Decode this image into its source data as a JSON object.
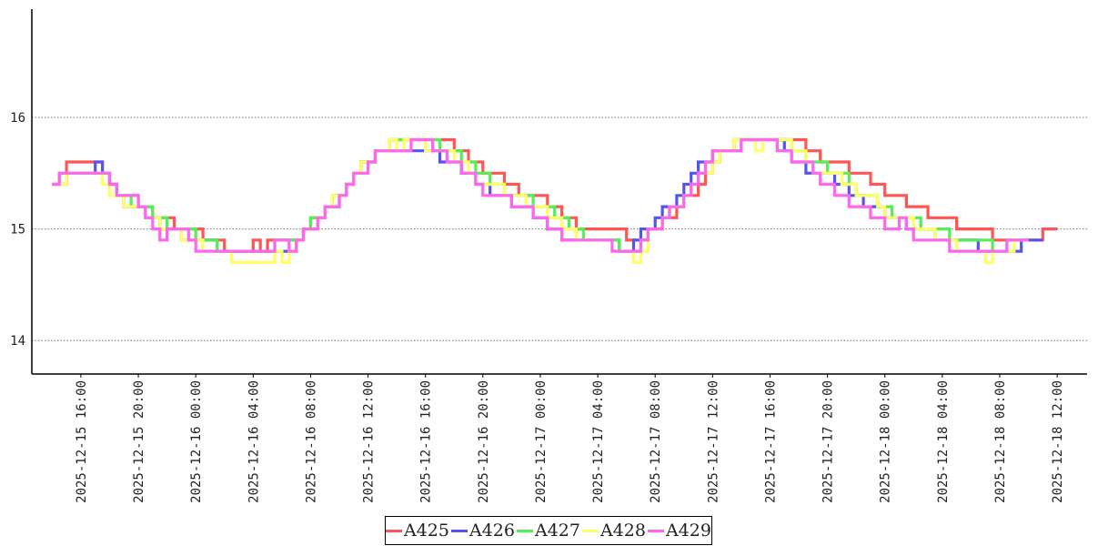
{
  "chart_data": {
    "type": "line",
    "title": "",
    "xlabel": "",
    "ylabel": "",
    "ylim": [
      13.7,
      16.97
    ],
    "xlim": [
      "2025-12-15 12:35",
      "2025-12-18 14:05"
    ],
    "y_ticks": [
      "14",
      "15",
      "16"
    ],
    "x_ticks": [
      "2025-12-15 16:00",
      "2025-12-15 20:00",
      "2025-12-16 00:00",
      "2025-12-16 04:00",
      "2025-12-16 08:00",
      "2025-12-16 12:00",
      "2025-12-16 16:00",
      "2025-12-16 20:00",
      "2025-12-17 00:00",
      "2025-12-17 04:00",
      "2025-12-17 08:00",
      "2025-12-17 12:00",
      "2025-12-17 16:00",
      "2025-12-17 20:00",
      "2025-12-18 00:00",
      "2025-12-18 04:00",
      "2025-12-18 08:00",
      "2025-12-18 12:00"
    ],
    "grid": "horizontal-dotted",
    "legend_position": "bottom-center",
    "start": "2025-12-15 14:00",
    "step_minutes": 30,
    "series": [
      {
        "name": "A425",
        "color": "#ff5555",
        "values": [
          15.4,
          15.5,
          15.6,
          15.6,
          15.6,
          15.6,
          15.6,
          15.5,
          15.4,
          15.3,
          15.3,
          15.3,
          15.2,
          15.2,
          15.1,
          15.1,
          15.1,
          15.0,
          15.0,
          15.0,
          15.0,
          14.9,
          14.9,
          14.9,
          14.8,
          14.8,
          14.8,
          14.8,
          14.9,
          14.8,
          14.9,
          14.9,
          14.9,
          14.9,
          14.9,
          15.0,
          15.1,
          15.1,
          15.2,
          15.3,
          15.3,
          15.4,
          15.5,
          15.6,
          15.6,
          15.7,
          15.7,
          15.8,
          15.8,
          15.8,
          15.8,
          15.8,
          15.8,
          15.8,
          15.8,
          15.8,
          15.7,
          15.7,
          15.6,
          15.6,
          15.5,
          15.5,
          15.5,
          15.4,
          15.4,
          15.3,
          15.3,
          15.3,
          15.3,
          15.2,
          15.2,
          15.1,
          15.1,
          15.0,
          15.0,
          15.0,
          15.0,
          15.0,
          15.0,
          15.0,
          14.9,
          14.9,
          14.9,
          15.0,
          15.0,
          15.1,
          15.1,
          15.2,
          15.3,
          15.3,
          15.4,
          15.5,
          15.6,
          15.7,
          15.7,
          15.8,
          15.8,
          15.8,
          15.8,
          15.8,
          15.8,
          15.8,
          15.8,
          15.8,
          15.8,
          15.7,
          15.7,
          15.6,
          15.6,
          15.6,
          15.6,
          15.5,
          15.5,
          15.5,
          15.4,
          15.4,
          15.3,
          15.3,
          15.3,
          15.2,
          15.2,
          15.2,
          15.1,
          15.1,
          15.1,
          15.1,
          15.0,
          15.0,
          15.0,
          15.0,
          15.0,
          14.9,
          14.9,
          14.9,
          14.9,
          14.9,
          14.9,
          14.9,
          15.0,
          15.0
        ]
      },
      {
        "name": "A426",
        "color": "#5555ee",
        "values": [
          15.4,
          15.4,
          15.5,
          15.5,
          15.5,
          15.5,
          15.6,
          15.5,
          15.4,
          15.3,
          15.2,
          15.2,
          15.2,
          15.1,
          15.1,
          15.0,
          15.0,
          15.0,
          14.9,
          14.9,
          14.9,
          14.9,
          14.9,
          14.8,
          14.8,
          14.8,
          14.8,
          14.8,
          14.8,
          14.8,
          14.8,
          14.8,
          14.8,
          14.8,
          14.9,
          15.0,
          15.0,
          15.1,
          15.2,
          15.2,
          15.3,
          15.4,
          15.5,
          15.6,
          15.6,
          15.7,
          15.7,
          15.7,
          15.7,
          15.7,
          15.7,
          15.7,
          15.7,
          15.7,
          15.6,
          15.6,
          15.6,
          15.5,
          15.5,
          15.4,
          15.4,
          15.3,
          15.3,
          15.3,
          15.2,
          15.2,
          15.2,
          15.1,
          15.1,
          15.0,
          15.0,
          14.9,
          14.9,
          14.9,
          14.9,
          14.9,
          14.9,
          14.9,
          14.9,
          14.8,
          14.8,
          14.9,
          15.0,
          15.0,
          15.1,
          15.2,
          15.2,
          15.3,
          15.4,
          15.5,
          15.6,
          15.6,
          15.7,
          15.7,
          15.7,
          15.7,
          15.8,
          15.8,
          15.8,
          15.8,
          15.8,
          15.8,
          15.7,
          15.6,
          15.6,
          15.5,
          15.5,
          15.5,
          15.5,
          15.4,
          15.4,
          15.3,
          15.3,
          15.2,
          15.2,
          15.2,
          15.1,
          15.1,
          15.1,
          15.0,
          15.0,
          15.0,
          15.0,
          14.9,
          14.9,
          14.9,
          14.9,
          14.9,
          14.9,
          14.8,
          14.8,
          14.8,
          14.8,
          14.8,
          14.8,
          14.9,
          14.9,
          14.9
        ]
      },
      {
        "name": "A427",
        "color": "#55ee55",
        "values": [
          15.4,
          15.5,
          15.5,
          15.5,
          15.5,
          15.5,
          15.5,
          15.5,
          15.4,
          15.3,
          15.3,
          15.2,
          15.2,
          15.2,
          15.1,
          15.1,
          15.0,
          15.0,
          15.0,
          15.0,
          14.9,
          14.9,
          14.9,
          14.8,
          14.8,
          14.8,
          14.8,
          14.8,
          14.8,
          14.8,
          14.8,
          14.9,
          14.9,
          14.9,
          14.9,
          15.0,
          15.1,
          15.1,
          15.2,
          15.3,
          15.3,
          15.4,
          15.5,
          15.6,
          15.6,
          15.7,
          15.7,
          15.8,
          15.8,
          15.8,
          15.8,
          15.8,
          15.8,
          15.8,
          15.7,
          15.7,
          15.7,
          15.6,
          15.6,
          15.5,
          15.5,
          15.4,
          15.4,
          15.3,
          15.3,
          15.3,
          15.3,
          15.2,
          15.2,
          15.2,
          15.1,
          15.1,
          15.0,
          15.0,
          14.9,
          14.9,
          14.9,
          14.9,
          14.9,
          14.8,
          14.8,
          14.8,
          14.9,
          15.0,
          15.0,
          15.1,
          15.2,
          15.2,
          15.3,
          15.4,
          15.5,
          15.6,
          15.6,
          15.7,
          15.7,
          15.8,
          15.8,
          15.8,
          15.8,
          15.8,
          15.8,
          15.8,
          15.8,
          15.7,
          15.7,
          15.6,
          15.6,
          15.6,
          15.5,
          15.5,
          15.5,
          15.4,
          15.3,
          15.3,
          15.3,
          15.2,
          15.2,
          15.1,
          15.1,
          15.1,
          15.1,
          15.0,
          15.0,
          15.0,
          15.0,
          14.9,
          14.9,
          14.9,
          14.9,
          14.9,
          14.9,
          14.8,
          14.8,
          14.9,
          14.9,
          14.9
        ]
      },
      {
        "name": "A428",
        "color": "#ffff66",
        "values": [
          15.4,
          15.4,
          15.5,
          15.5,
          15.5,
          15.5,
          15.5,
          15.4,
          15.3,
          15.3,
          15.2,
          15.2,
          15.2,
          15.1,
          15.1,
          15.0,
          15.0,
          15.0,
          14.9,
          14.9,
          14.9,
          14.8,
          14.8,
          14.8,
          14.8,
          14.7,
          14.7,
          14.7,
          14.7,
          14.7,
          14.7,
          14.8,
          14.7,
          14.8,
          14.9,
          15.0,
          15.0,
          15.1,
          15.2,
          15.3,
          15.3,
          15.4,
          15.5,
          15.6,
          15.6,
          15.7,
          15.7,
          15.8,
          15.7,
          15.8,
          15.8,
          15.8,
          15.7,
          15.7,
          15.7,
          15.7,
          15.6,
          15.6,
          15.5,
          15.4,
          15.4,
          15.4,
          15.4,
          15.3,
          15.3,
          15.3,
          15.2,
          15.2,
          15.2,
          15.1,
          15.1,
          15.0,
          15.0,
          14.9,
          14.9,
          14.9,
          14.9,
          14.9,
          14.8,
          14.8,
          14.8,
          14.7,
          14.8,
          15.0,
          15.0,
          15.1,
          15.2,
          15.2,
          15.3,
          15.4,
          15.5,
          15.5,
          15.6,
          15.7,
          15.7,
          15.8,
          15.8,
          15.8,
          15.7,
          15.8,
          15.8,
          15.8,
          15.8,
          15.7,
          15.7,
          15.6,
          15.5,
          15.5,
          15.5,
          15.5,
          15.4,
          15.4,
          15.3,
          15.3,
          15.3,
          15.2,
          15.1,
          15.1,
          15.1,
          15.1,
          15.0,
          15.0,
          15.0,
          14.9,
          14.9,
          14.9,
          14.8,
          14.8,
          14.8,
          14.8,
          14.7,
          14.8,
          14.8,
          14.8,
          14.9,
          14.9
        ]
      },
      {
        "name": "A429",
        "color": "#ff66ee",
        "values": [
          15.4,
          15.5,
          15.5,
          15.5,
          15.5,
          15.5,
          15.5,
          15.5,
          15.4,
          15.3,
          15.3,
          15.3,
          15.2,
          15.1,
          15.0,
          14.9,
          15.0,
          15.0,
          15.0,
          14.9,
          14.8,
          14.8,
          14.8,
          14.8,
          14.8,
          14.8,
          14.8,
          14.8,
          14.8,
          14.8,
          14.8,
          14.9,
          14.9,
          14.8,
          14.9,
          15.0,
          15.0,
          15.1,
          15.2,
          15.2,
          15.3,
          15.4,
          15.5,
          15.5,
          15.6,
          15.7,
          15.7,
          15.7,
          15.7,
          15.7,
          15.8,
          15.8,
          15.8,
          15.7,
          15.7,
          15.6,
          15.6,
          15.5,
          15.5,
          15.4,
          15.3,
          15.3,
          15.3,
          15.3,
          15.2,
          15.2,
          15.2,
          15.1,
          15.1,
          15.0,
          15.0,
          14.9,
          14.9,
          14.9,
          14.9,
          14.9,
          14.9,
          14.9,
          14.8,
          14.8,
          14.8,
          14.8,
          14.9,
          15.0,
          15.0,
          15.1,
          15.2,
          15.2,
          15.3,
          15.4,
          15.5,
          15.6,
          15.7,
          15.7,
          15.7,
          15.7,
          15.8,
          15.8,
          15.8,
          15.8,
          15.8,
          15.7,
          15.7,
          15.6,
          15.6,
          15.6,
          15.5,
          15.4,
          15.4,
          15.3,
          15.3,
          15.2,
          15.2,
          15.2,
          15.1,
          15.1,
          15.0,
          15.0,
          15.1,
          15.0,
          14.9,
          14.9,
          14.9,
          14.9,
          14.9,
          14.8,
          14.8,
          14.8,
          14.8,
          14.8,
          14.8,
          14.8,
          14.8,
          14.9,
          14.9,
          14.9
        ]
      }
    ]
  }
}
